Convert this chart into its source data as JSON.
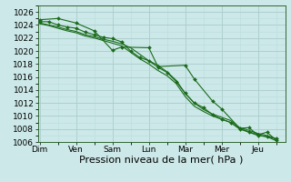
{
  "background_color": "#cce8e8",
  "grid_color_major": "#aacccc",
  "grid_color_minor": "#bbdddd",
  "line_color": "#1a6b1a",
  "marker_color": "#1a6b1a",
  "xlabel": "Pression niveau de la mer( hPa )",
  "ylim": [
    1006,
    1027
  ],
  "yticks": [
    1006,
    1008,
    1010,
    1012,
    1014,
    1016,
    1018,
    1020,
    1022,
    1024,
    1026
  ],
  "day_labels": [
    "Dim",
    "Ven",
    "Sam",
    "Lun",
    "Mar",
    "Mer",
    "Jeu"
  ],
  "day_positions": [
    0,
    2,
    4,
    6,
    8,
    10,
    12
  ],
  "xlim": [
    -0.1,
    13.5
  ],
  "xlabel_fontsize": 8,
  "tick_fontsize": 6.5,
  "series1_x": [
    0,
    1,
    2,
    3,
    4,
    4.5,
    6,
    6.5,
    8,
    8.5,
    9.5,
    10,
    11,
    11.5,
    12,
    12.5,
    13
  ],
  "series1_y": [
    1024.8,
    1025.0,
    1024.3,
    1023.1,
    1020.1,
    1020.6,
    1020.5,
    1017.6,
    1017.8,
    1015.7,
    1012.3,
    1011.1,
    1008.1,
    1008.2,
    1007.1,
    1007.5,
    1006.3
  ],
  "series2_x": [
    0,
    0.5,
    1,
    1.5,
    2,
    2.5,
    3,
    3.5,
    4,
    4.5,
    5,
    5.5,
    6,
    6.5,
    7,
    7.5,
    8,
    8.5,
    9,
    9.5,
    10,
    10.5,
    11,
    11.5,
    12,
    12.5,
    13
  ],
  "series2_y": [
    1024.5,
    1024.5,
    1024.0,
    1023.7,
    1023.5,
    1022.9,
    1022.5,
    1022.1,
    1021.9,
    1021.4,
    1020.0,
    1019.0,
    1018.5,
    1017.5,
    1016.7,
    1015.3,
    1013.5,
    1012.0,
    1011.3,
    1010.2,
    1009.5,
    1009.0,
    1008.0,
    1007.5,
    1007.0,
    1006.8,
    1006.5
  ],
  "series3_x": [
    0,
    0.5,
    1,
    1.5,
    2,
    2.5,
    3,
    3.5,
    4,
    4.5,
    5,
    5.5,
    6,
    6.5,
    7,
    7.5,
    8,
    8.5,
    9,
    9.5,
    10,
    10.5,
    11,
    11.5,
    12,
    12.5,
    13
  ],
  "series3_y": [
    1024.3,
    1024.0,
    1023.7,
    1023.3,
    1023.0,
    1022.5,
    1022.2,
    1021.8,
    1021.5,
    1021.1,
    1020.5,
    1019.5,
    1018.5,
    1017.8,
    1016.8,
    1015.5,
    1013.5,
    1012.0,
    1011.0,
    1010.3,
    1009.8,
    1009.3,
    1008.2,
    1007.8,
    1007.3,
    1007.0,
    1006.5
  ],
  "series4_x": [
    0,
    0.5,
    1,
    1.5,
    2,
    2.5,
    3,
    3.5,
    4,
    4.5,
    5,
    5.5,
    6,
    6.5,
    7,
    7.5,
    8,
    8.5,
    9,
    9.5,
    10,
    10.5,
    11,
    11.5,
    12,
    12.5,
    13
  ],
  "series4_y": [
    1024.2,
    1023.9,
    1023.5,
    1023.1,
    1022.8,
    1022.3,
    1022.0,
    1021.6,
    1021.2,
    1020.8,
    1019.8,
    1018.8,
    1018.0,
    1017.0,
    1016.2,
    1015.0,
    1013.0,
    1011.5,
    1010.7,
    1010.0,
    1009.5,
    1009.0,
    1008.0,
    1007.6,
    1007.1,
    1006.8,
    1006.2
  ]
}
